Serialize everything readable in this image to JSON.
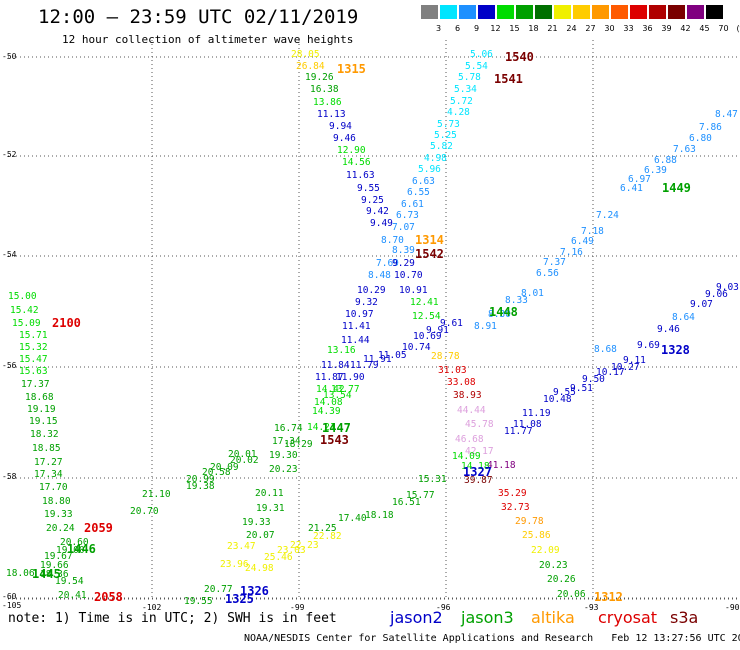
{
  "title": "12:00 – 23:59 UTC 02/11/2019",
  "subtitle": "12 hour collection of altimeter wave heights",
  "colorbar": {
    "labels": [
      "3",
      "6",
      "9",
      "12",
      "15",
      "18",
      "21",
      "24",
      "27",
      "30",
      "33",
      "36",
      "39",
      "42",
      "45",
      "70",
      "(ft)"
    ],
    "colors": [
      "#808080",
      "#00e5ff",
      "#1e90ff",
      "#0000c8",
      "#00dc00",
      "#00a000",
      "#007000",
      "#f0f000",
      "#ffcc00",
      "#ff9900",
      "#ff5a00",
      "#dd0000",
      "#b00000",
      "#7a0000",
      "#800080",
      "#000000"
    ]
  },
  "axes": {
    "lat_labels": [
      "-50",
      "-52",
      "-54",
      "-56",
      "-58",
      "-60"
    ],
    "lon_labels": [
      "-105",
      "-102",
      "-99",
      "-96",
      "-93",
      "-90"
    ]
  },
  "note": "note: 1) Time is in UTC; 2) SWH is in feet",
  "satellites": [
    {
      "name": "jason2",
      "color": "#0000c8"
    },
    {
      "name": "jason3",
      "color": "#00a000"
    },
    {
      "name": "altika",
      "color": "#ff9900"
    },
    {
      "name": "cryosat",
      "color": "#dd0000"
    },
    {
      "name": "s3a",
      "color": "#7a0000"
    }
  ],
  "credit": "NOAA/NESDIS Center for Satellite Applications and Research   Feb 12 13:27:56 UTC 2019",
  "times": [
    {
      "text": "1540",
      "color": "#7a0000"
    },
    {
      "text": "1541",
      "color": "#7a0000"
    },
    {
      "text": "1315",
      "color": "#ff9900"
    },
    {
      "text": "1449",
      "color": "#00a000"
    },
    {
      "text": "1314",
      "color": "#ff9900"
    },
    {
      "text": "1542",
      "color": "#7a0000"
    },
    {
      "text": "2100",
      "color": "#dd0000"
    },
    {
      "text": "1448",
      "color": "#00a000"
    },
    {
      "text": "1328",
      "color": "#0000c8"
    },
    {
      "text": "1447",
      "color": "#00a000"
    },
    {
      "text": "1543",
      "color": "#7a0000"
    },
    {
      "text": "1327",
      "color": "#0000c8"
    },
    {
      "text": "2059",
      "color": "#dd0000"
    },
    {
      "text": "1446",
      "color": "#00a000"
    },
    {
      "text": "1445",
      "color": "#00a000"
    },
    {
      "text": "2058",
      "color": "#dd0000"
    },
    {
      "text": "1326",
      "color": "#0000c8"
    },
    {
      "text": "1325",
      "color": "#0000c8"
    },
    {
      "text": "1312",
      "color": "#ff9900"
    }
  ],
  "values": [
    {
      "text": "28.05",
      "color": "#f0f000"
    },
    {
      "text": "26.84",
      "color": "#ffcc00"
    },
    {
      "text": "19.26",
      "color": "#00a000"
    },
    {
      "text": "16.38",
      "color": "#00a000"
    },
    {
      "text": "13.86",
      "color": "#00dc00"
    },
    {
      "text": "11.13",
      "color": "#0000c8"
    },
    {
      "text": "9.94",
      "color": "#0000c8"
    },
    {
      "text": "9.46",
      "color": "#0000c8"
    },
    {
      "text": "12.90",
      "color": "#00dc00"
    },
    {
      "text": "14.56",
      "color": "#00dc00"
    },
    {
      "text": "11.63",
      "color": "#0000c8"
    },
    {
      "text": "9.55",
      "color": "#0000c8"
    },
    {
      "text": "9.25",
      "color": "#0000c8"
    },
    {
      "text": "9.42",
      "color": "#0000c8"
    },
    {
      "text": "9.49",
      "color": "#0000c8"
    },
    {
      "text": "5.06",
      "color": "#00e5ff"
    },
    {
      "text": "5.54",
      "color": "#00e5ff"
    },
    {
      "text": "5.78",
      "color": "#00e5ff"
    },
    {
      "text": "5.34",
      "color": "#00e5ff"
    },
    {
      "text": "5.72",
      "color": "#00e5ff"
    },
    {
      "text": "4.28",
      "color": "#00e5ff"
    },
    {
      "text": "5.73",
      "color": "#00e5ff"
    },
    {
      "text": "5.25",
      "color": "#00e5ff"
    },
    {
      "text": "5.82",
      "color": "#00e5ff"
    },
    {
      "text": "4.98",
      "color": "#00e5ff"
    },
    {
      "text": "5.96",
      "color": "#00e5ff"
    },
    {
      "text": "6.63",
      "color": "#1e90ff"
    },
    {
      "text": "6.55",
      "color": "#1e90ff"
    },
    {
      "text": "6.61",
      "color": "#1e90ff"
    },
    {
      "text": "6.73",
      "color": "#1e90ff"
    },
    {
      "text": "7.07",
      "color": "#1e90ff"
    },
    {
      "text": "8.70",
      "color": "#1e90ff"
    },
    {
      "text": "8.39",
      "color": "#1e90ff"
    },
    {
      "text": "7.69",
      "color": "#1e90ff"
    },
    {
      "text": "8.48",
      "color": "#1e90ff"
    },
    {
      "text": "9.29",
      "color": "#0000c8"
    },
    {
      "text": "10.70",
      "color": "#0000c8"
    },
    {
      "text": "10.29",
      "color": "#0000c8"
    },
    {
      "text": "10.91",
      "color": "#0000c8"
    },
    {
      "text": "9.32",
      "color": "#0000c8"
    },
    {
      "text": "10.97",
      "color": "#0000c8"
    },
    {
      "text": "11.41",
      "color": "#0000c8"
    },
    {
      "text": "11.44",
      "color": "#0000c8"
    },
    {
      "text": "11.84",
      "color": "#0000c8"
    },
    {
      "text": "11.87",
      "color": "#0000c8"
    },
    {
      "text": "11.90",
      "color": "#0000c8"
    },
    {
      "text": "11.79",
      "color": "#0000c8"
    },
    {
      "text": "11.91",
      "color": "#0000c8"
    },
    {
      "text": "11.05",
      "color": "#0000c8"
    },
    {
      "text": "10.74",
      "color": "#0000c8"
    },
    {
      "text": "10.69",
      "color": "#0000c8"
    },
    {
      "text": "9.91",
      "color": "#0000c8"
    },
    {
      "text": "9.61",
      "color": "#0000c8"
    },
    {
      "text": "12.41",
      "color": "#00dc00"
    },
    {
      "text": "12.54",
      "color": "#00dc00"
    },
    {
      "text": "13.16",
      "color": "#00dc00"
    },
    {
      "text": "13.77",
      "color": "#00dc00"
    },
    {
      "text": "13.54",
      "color": "#00dc00"
    },
    {
      "text": "14.42",
      "color": "#00dc00"
    },
    {
      "text": "14.08",
      "color": "#00dc00"
    },
    {
      "text": "14.39",
      "color": "#00dc00"
    },
    {
      "text": "14.21",
      "color": "#00dc00"
    },
    {
      "text": "16.74",
      "color": "#00a000"
    },
    {
      "text": "17.34",
      "color": "#00a000"
    },
    {
      "text": "18.29",
      "color": "#00a000"
    },
    {
      "text": "20.01",
      "color": "#00a000"
    },
    {
      "text": "20.02",
      "color": "#00a000"
    },
    {
      "text": "20.09",
      "color": "#00a000"
    },
    {
      "text": "20.58",
      "color": "#00a000"
    },
    {
      "text": "20.99",
      "color": "#00a000"
    },
    {
      "text": "19.38",
      "color": "#00a000"
    },
    {
      "text": "20.70",
      "color": "#00a000"
    },
    {
      "text": "19.30",
      "color": "#00a000"
    },
    {
      "text": "20.23",
      "color": "#00a000"
    },
    {
      "text": "20.11",
      "color": "#00a000"
    },
    {
      "text": "19.31",
      "color": "#00a000"
    },
    {
      "text": "19.33",
      "color": "#00a000"
    },
    {
      "text": "20.07",
      "color": "#00a000"
    },
    {
      "text": "23.47",
      "color": "#f0f000"
    },
    {
      "text": "23.96",
      "color": "#f0f000"
    },
    {
      "text": "24.98",
      "color": "#f0f000"
    },
    {
      "text": "25.46",
      "color": "#f0f000"
    },
    {
      "text": "23.03",
      "color": "#f0f000"
    },
    {
      "text": "22.23",
      "color": "#f0f000"
    },
    {
      "text": "21.25",
      "color": "#00a000"
    },
    {
      "text": "22.82",
      "color": "#f0f000"
    },
    {
      "text": "20.77",
      "color": "#00a000"
    },
    {
      "text": "19.55",
      "color": "#00a000"
    },
    {
      "text": "21.10",
      "color": "#00a000"
    },
    {
      "text": "15.00",
      "color": "#00dc00"
    },
    {
      "text": "15.42",
      "color": "#00dc00"
    },
    {
      "text": "15.09",
      "color": "#00dc00"
    },
    {
      "text": "15.71",
      "color": "#00dc00"
    },
    {
      "text": "15.32",
      "color": "#00dc00"
    },
    {
      "text": "15.47",
      "color": "#00dc00"
    },
    {
      "text": "15.63",
      "color": "#00dc00"
    },
    {
      "text": "17.37",
      "color": "#00a000"
    },
    {
      "text": "18.68",
      "color": "#00a000"
    },
    {
      "text": "19.19",
      "color": "#00a000"
    },
    {
      "text": "19.15",
      "color": "#00a000"
    },
    {
      "text": "18.32",
      "color": "#00a000"
    },
    {
      "text": "18.85",
      "color": "#00a000"
    },
    {
      "text": "17.27",
      "color": "#00a000"
    },
    {
      "text": "17.34",
      "color": "#00a000"
    },
    {
      "text": "17.70",
      "color": "#00a000"
    },
    {
      "text": "18.80",
      "color": "#00a000"
    },
    {
      "text": "19.33",
      "color": "#00a000"
    },
    {
      "text": "20.24",
      "color": "#00a000"
    },
    {
      "text": "20.60",
      "color": "#00a000"
    },
    {
      "text": "19.00",
      "color": "#00a000"
    },
    {
      "text": "19.67",
      "color": "#00a000"
    },
    {
      "text": "19.66",
      "color": "#00a000"
    },
    {
      "text": "18.06",
      "color": "#00a000"
    },
    {
      "text": "19.54",
      "color": "#00a000"
    },
    {
      "text": "20.41",
      "color": "#00a000"
    },
    {
      "text": "18.36",
      "color": "#00a000"
    },
    {
      "text": "28.78",
      "color": "#ffcc00"
    },
    {
      "text": "31.03",
      "color": "#dd0000"
    },
    {
      "text": "33.08",
      "color": "#dd0000"
    },
    {
      "text": "38.93",
      "color": "#b00000"
    },
    {
      "text": "44.44",
      "color": "#dda0dd"
    },
    {
      "text": "45.78",
      "color": "#dda0dd"
    },
    {
      "text": "46.68",
      "color": "#dda0dd"
    },
    {
      "text": "42.17",
      "color": "#dda0dd"
    },
    {
      "text": "41.18",
      "color": "#800080"
    },
    {
      "text": "39.87",
      "color": "#7a0000"
    },
    {
      "text": "35.29",
      "color": "#dd0000"
    },
    {
      "text": "32.73",
      "color": "#dd0000"
    },
    {
      "text": "29.78",
      "color": "#ff9900"
    },
    {
      "text": "25.86",
      "color": "#ffcc00"
    },
    {
      "text": "22.09",
      "color": "#f0f000"
    },
    {
      "text": "20.23",
      "color": "#00a000"
    },
    {
      "text": "20.26",
      "color": "#00a000"
    },
    {
      "text": "20.06",
      "color": "#00a000"
    },
    {
      "text": "11.08",
      "color": "#0000c8"
    },
    {
      "text": "11.19",
      "color": "#0000c8"
    },
    {
      "text": "11.77",
      "color": "#0000c8"
    },
    {
      "text": "10.48",
      "color": "#0000c8"
    },
    {
      "text": "9.55",
      "color": "#0000c8"
    },
    {
      "text": "9.51",
      "color": "#0000c8"
    },
    {
      "text": "9.50",
      "color": "#0000c8"
    },
    {
      "text": "10.17",
      "color": "#0000c8"
    },
    {
      "text": "10.27",
      "color": "#0000c8"
    },
    {
      "text": "9.11",
      "color": "#0000c8"
    },
    {
      "text": "8.68",
      "color": "#1e90ff"
    },
    {
      "text": "9.69",
      "color": "#0000c8"
    },
    {
      "text": "9.46",
      "color": "#0000c8"
    },
    {
      "text": "8.64",
      "color": "#1e90ff"
    },
    {
      "text": "9.07",
      "color": "#0000c8"
    },
    {
      "text": "9.06",
      "color": "#0000c8"
    },
    {
      "text": "9.03",
      "color": "#0000c8"
    },
    {
      "text": "14.09",
      "color": "#00dc00"
    },
    {
      "text": "14.18",
      "color": "#00dc00"
    },
    {
      "text": "15.31",
      "color": "#00a000"
    },
    {
      "text": "15.77",
      "color": "#00a000"
    },
    {
      "text": "16.51",
      "color": "#00a000"
    },
    {
      "text": "18.18",
      "color": "#00a000"
    },
    {
      "text": "17.40",
      "color": "#00a000"
    },
    {
      "text": "8.91",
      "color": "#1e90ff"
    },
    {
      "text": "8.30",
      "color": "#1e90ff"
    },
    {
      "text": "8.33",
      "color": "#1e90ff"
    },
    {
      "text": "8.01",
      "color": "#1e90ff"
    },
    {
      "text": "6.56",
      "color": "#1e90ff"
    },
    {
      "text": "7.37",
      "color": "#1e90ff"
    },
    {
      "text": "7.16",
      "color": "#1e90ff"
    },
    {
      "text": "6.49",
      "color": "#1e90ff"
    },
    {
      "text": "7.18",
      "color": "#1e90ff"
    },
    {
      "text": "7.24",
      "color": "#1e90ff"
    },
    {
      "text": "6.41",
      "color": "#1e90ff"
    },
    {
      "text": "6.97",
      "color": "#1e90ff"
    },
    {
      "text": "6.39",
      "color": "#1e90ff"
    },
    {
      "text": "6.88",
      "color": "#1e90ff"
    },
    {
      "text": "7.63",
      "color": "#1e90ff"
    },
    {
      "text": "6.80",
      "color": "#1e90ff"
    },
    {
      "text": "7.86",
      "color": "#1e90ff"
    },
    {
      "text": "8.47",
      "color": "#1e90ff"
    }
  ]
}
